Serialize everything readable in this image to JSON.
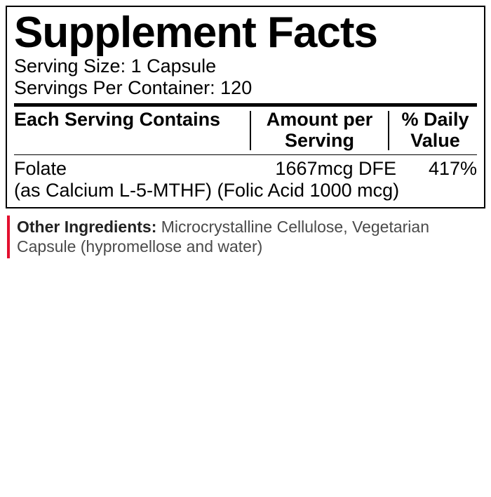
{
  "panel": {
    "title": "Supplement Facts",
    "serving_size_label": "Serving Size:",
    "serving_size_value": "1 Capsule",
    "servings_per_label": "Servings Per Container:",
    "servings_per_value": "120",
    "columns": {
      "name": "Each Serving Contains",
      "amount": "Amount per Serving",
      "dv": "% Daily Value"
    },
    "rows": [
      {
        "name": "Folate",
        "amount": "1667mcg DFE",
        "dv": "417%",
        "sub": "(as Calcium L-5-MTHF) (Folic Acid 1000 mcg)"
      }
    ]
  },
  "other": {
    "label": "Other Ingredients:",
    "text": "Microcrystalline Cellulose, Vegetarian Capsule (hypromellose and water)"
  },
  "style": {
    "accent_color": "#e30f2f",
    "text_color": "#000000",
    "muted_text": "#4a4a4a",
    "border_color": "#000000",
    "background": "#ffffff",
    "title_fontsize": 62,
    "body_fontsize": 27,
    "other_fontsize": 23
  }
}
